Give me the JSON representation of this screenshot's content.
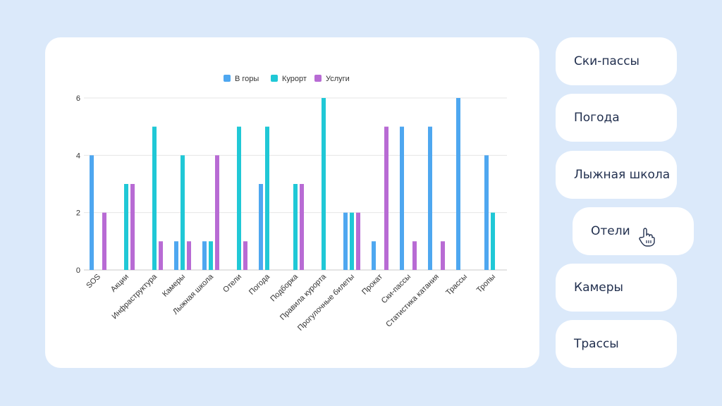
{
  "sidebar": {
    "items": [
      {
        "label": "Ски-пассы",
        "name": "sidebar-item-ski-passes"
      },
      {
        "label": "Погода",
        "name": "sidebar-item-weather"
      },
      {
        "label": "Лыжная школа",
        "name": "sidebar-item-ski-school"
      },
      {
        "label": "Отели",
        "name": "sidebar-item-hotels"
      },
      {
        "label": "Камеры",
        "name": "sidebar-item-cameras"
      },
      {
        "label": "Трассы",
        "name": "sidebar-item-trails"
      }
    ],
    "hovered_index": 3,
    "cursor_icon": "hand-pointer-icon"
  },
  "chart_data": {
    "type": "bar",
    "categories": [
      "SOS",
      "Акции",
      "Инфраструктура",
      "Камеры",
      "Лыжная школа",
      "Отели",
      "Погода",
      "Подборка",
      "Правила курорта",
      "Прогулочные билеты",
      "Прокат",
      "Ски-пассы",
      "Статистика катания",
      "Трассы",
      "Тропы"
    ],
    "series": [
      {
        "name": "В горы",
        "color": "#4ea7f0",
        "values": [
          4,
          0,
          0,
          1,
          1,
          0,
          3,
          0,
          0,
          2,
          1,
          5,
          5,
          6,
          4
        ]
      },
      {
        "name": "Курорт",
        "color": "#20c8d6",
        "values": [
          0,
          3,
          5,
          4,
          1,
          5,
          5,
          3,
          6,
          2,
          0,
          0,
          0,
          0,
          2
        ]
      },
      {
        "name": "Услуги",
        "color": "#b86bd4",
        "values": [
          2,
          3,
          1,
          1,
          4,
          1,
          0,
          3,
          0,
          2,
          5,
          1,
          1,
          0,
          0
        ]
      }
    ],
    "yticks": [
      0,
      2,
      4,
      6
    ],
    "ylim": [
      0,
      6
    ],
    "grid": true,
    "legend_position": "top-center"
  }
}
